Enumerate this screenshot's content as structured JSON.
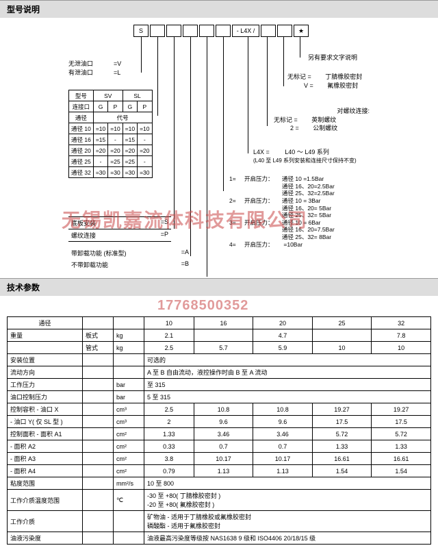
{
  "header1": "型号说明",
  "header2": "技术参数",
  "codeRow": [
    "S",
    "",
    "",
    "",
    "",
    "",
    "- L4X /",
    "",
    "",
    "★"
  ],
  "port_opt": [
    [
      "无泄油口",
      "=V"
    ],
    [
      "有泄油口",
      "=L"
    ]
  ],
  "connTbl": {
    "h1": [
      "型号",
      "SV",
      "",
      "SL",
      ""
    ],
    "h2": [
      "连接口",
      "G",
      "P",
      "G",
      "P"
    ],
    "h3": [
      "通径",
      "代号",
      "",
      "",
      ""
    ],
    "rows": [
      [
        "通径 10",
        "=10",
        "=10",
        "=10",
        "=10"
      ],
      [
        "通径 16",
        "=15",
        "-",
        "=15",
        "-"
      ],
      [
        "通径 20",
        "=20",
        "=20",
        "=20",
        "=20"
      ],
      [
        "通径 25",
        "-",
        "=25",
        "=25",
        "-"
      ],
      [
        "通径 32",
        "=30",
        "=30",
        "=30",
        "=30"
      ]
    ]
  },
  "mount": [
    [
      "底板安装",
      "=S"
    ],
    [
      "螺纹连接",
      "=P"
    ]
  ],
  "func": [
    [
      "带卸载功能 (标准型)",
      "=A"
    ],
    [
      "不带卸载功能",
      "=B"
    ]
  ],
  "right_top": "另有要求文字说明",
  "right_seal": [
    [
      "无标记 =",
      "丁腈橡胶密封"
    ],
    [
      "V =",
      "氟橡胶密封"
    ]
  ],
  "right_thread": [
    [
      "",
      "对螺纹连接:"
    ],
    [
      "无标记 =",
      "英制螺纹"
    ],
    [
      "2 =",
      "公制螺纹"
    ]
  ],
  "right_series": [
    [
      "L4X =",
      "L40 ～ L49 系列"
    ],
    [
      "(L40 至 L49 系列安装和连接尺寸保持不变)",
      ""
    ]
  ],
  "right_press": [
    [
      "1=",
      "开启压力：",
      "通径 10",
      "=1.5Bar"
    ],
    [
      "",
      "",
      "通径 16、20=2.5Bar",
      ""
    ],
    [
      "",
      "",
      "通径 25、32=2.5Bar",
      ""
    ],
    [
      "2=",
      "开启压力：",
      "通径 10",
      "= 3Bar"
    ],
    [
      "",
      "",
      "通径 16、20= 5Bar",
      ""
    ],
    [
      "",
      "",
      "通径 25、32= 5Bar",
      ""
    ],
    [
      "3=",
      "开启压力：",
      "通径 10",
      "= 6Bar"
    ],
    [
      "",
      "",
      "通径 16、20=7.5Bar",
      ""
    ],
    [
      "",
      "",
      "通径 25、32= 8Bar",
      ""
    ],
    [
      "4=",
      "开启压力：",
      "",
      "=10Bar"
    ]
  ],
  "spec": {
    "cols": [
      "通径",
      "",
      "",
      "10",
      "16",
      "20",
      "25",
      "32"
    ],
    "rows": [
      [
        "重量",
        "板式",
        "kg",
        "2.1",
        "",
        "4.7",
        "",
        "7.8"
      ],
      [
        "",
        "管式",
        "kg",
        "2.5",
        "5.7",
        "5.9",
        "10",
        "10"
      ],
      [
        "安装位置",
        "",
        "",
        "可选的",
        "",
        "",
        "",
        ""
      ],
      [
        "流动方向",
        "",
        "",
        "A 至 B 自由流动，液控操作时由 B 至 A 流动",
        "",
        "",
        "",
        ""
      ],
      [
        "工作压力",
        "",
        "bar",
        "至 315",
        "",
        "",
        "",
        ""
      ],
      [
        "油口控制压力",
        "",
        "bar",
        "5 至 315",
        "",
        "",
        "",
        ""
      ],
      [
        "控制容积 - 油口 X",
        "",
        "cm³",
        "2.5",
        "10.8",
        "10.8",
        "19.27",
        "19.27"
      ],
      [
        "- 油口 Y( 仅 SL 型 )",
        "",
        "cm³",
        "2",
        "9.6",
        "9.6",
        "17.5",
        "17.5"
      ],
      [
        "控制面积 - 面积 A1",
        "",
        "cm²",
        "1.33",
        "3.46",
        "3.46",
        "5.72",
        "5.72"
      ],
      [
        "- 面积 A2",
        "",
        "cm²",
        "0.33",
        "0.7",
        "0.7",
        "1.33",
        "1.33"
      ],
      [
        "- 面积 A3",
        "",
        "cm²",
        "3.8",
        "10.17",
        "10.17",
        "16.61",
        "16.61"
      ],
      [
        "- 面积 A4",
        "",
        "cm²",
        "0.79",
        "1.13",
        "1.13",
        "1.54",
        "1.54"
      ],
      [
        "粘度范围",
        "",
        "mm²/s",
        "10 至 800",
        "",
        "",
        "",
        ""
      ],
      [
        "工作介质温度范围",
        "",
        "℃",
        "-30 至 +80( 丁腈橡胶密封 )\n-20 至 +80( 氟橡胶密封 )",
        "",
        "",
        "",
        ""
      ],
      [
        "工作介质",
        "",
        "",
        "矿物油 - 适用于丁腈橡胶或氟橡胶密封\n磷酸酯 - 适用于氟橡胶密封",
        "",
        "",
        "",
        ""
      ],
      [
        "油液污染度",
        "",
        "",
        "油液最高污染度等级按 NAS1638 9 级和 ISO4406 20/18/15 级",
        "",
        "",
        "",
        ""
      ]
    ]
  },
  "watermark1": "无锡凯嘉流体科技有限公司",
  "watermark2": "17768500352"
}
